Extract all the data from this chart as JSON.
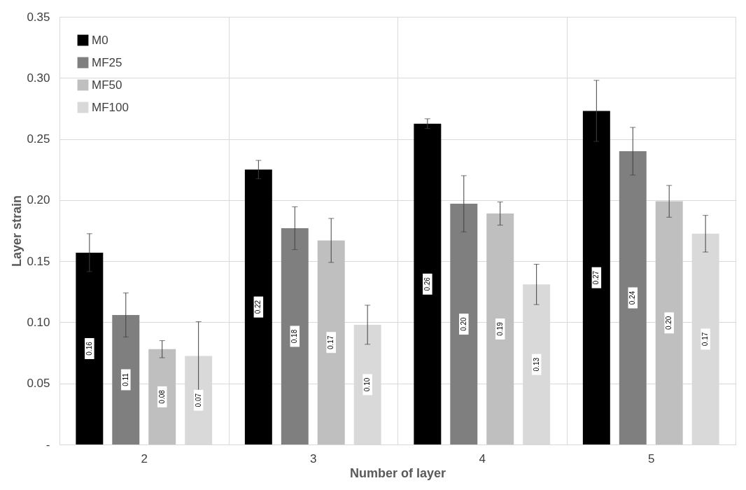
{
  "chart_data": {
    "type": "bar",
    "xlabel": "Number of layer",
    "ylabel": "Layer strain",
    "categories": [
      "2",
      "3",
      "4",
      "5"
    ],
    "series": [
      {
        "name": "M0",
        "color": "#000000",
        "values": [
          0.157,
          0.225,
          0.2625,
          0.273
        ],
        "errors": [
          0.0155,
          0.0075,
          0.004,
          0.025
        ],
        "value_labels": [
          "0.16",
          "0.22",
          "0.26",
          "0.27"
        ]
      },
      {
        "name": "MF25",
        "color": "#7f7f7f",
        "values": [
          0.106,
          0.177,
          0.197,
          0.24
        ],
        "errors": [
          0.018,
          0.0175,
          0.023,
          0.0195
        ],
        "value_labels": [
          "0.11",
          "0.18",
          "0.20",
          "0.24"
        ]
      },
      {
        "name": "MF50",
        "color": "#bfbfbf",
        "values": [
          0.078,
          0.167,
          0.189,
          0.199
        ],
        "errors": [
          0.007,
          0.018,
          0.0095,
          0.013
        ],
        "value_labels": [
          "0.08",
          "0.17",
          "0.19",
          "0.20"
        ]
      },
      {
        "name": "MF100",
        "color": "#d9d9d9",
        "values": [
          0.0725,
          0.098,
          0.131,
          0.1725
        ],
        "errors": [
          0.028,
          0.016,
          0.0165,
          0.015
        ],
        "value_labels": [
          "0.07",
          "0.10",
          "0.13",
          "0.17"
        ]
      }
    ],
    "ylim": [
      0,
      0.35
    ],
    "yticks": [
      {
        "value": 0,
        "label": "-"
      },
      {
        "value": 0.05,
        "label": "0.05"
      },
      {
        "value": 0.1,
        "label": "0.10"
      },
      {
        "value": 0.15,
        "label": "0.15"
      },
      {
        "value": 0.2,
        "label": "0.20"
      },
      {
        "value": 0.25,
        "label": "0.25"
      },
      {
        "value": 0.3,
        "label": "0.30"
      },
      {
        "value": 0.35,
        "label": "0.35"
      }
    ],
    "grid": true,
    "legend": "top left"
  }
}
